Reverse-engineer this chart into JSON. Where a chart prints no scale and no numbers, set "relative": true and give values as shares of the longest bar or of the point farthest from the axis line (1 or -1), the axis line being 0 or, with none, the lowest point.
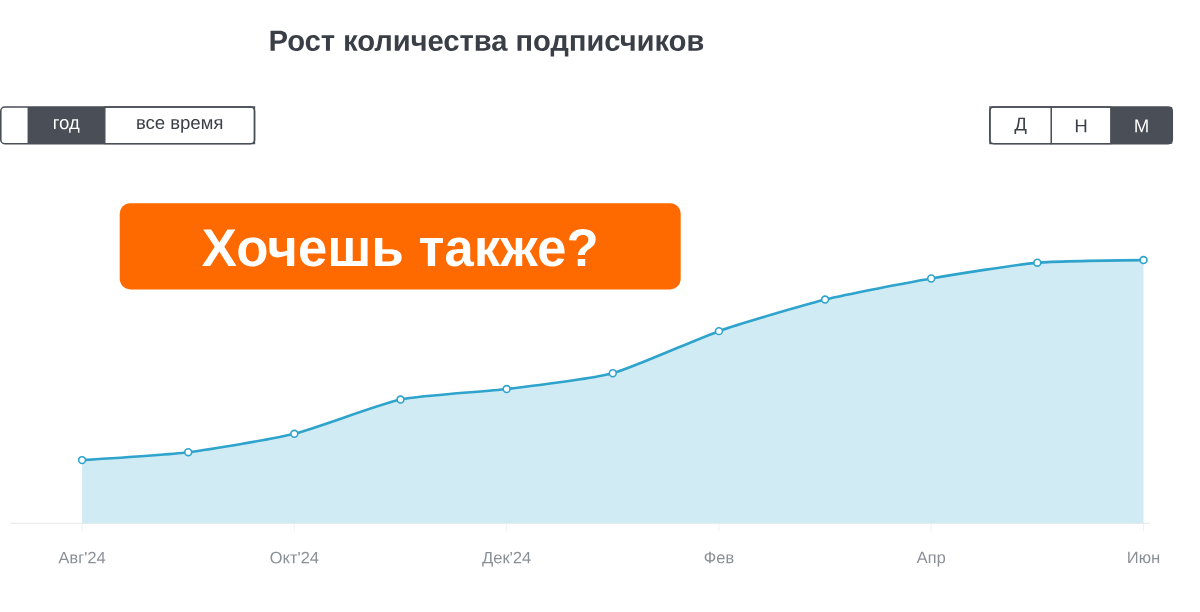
{
  "chart_data": {
    "type": "area",
    "title": "Рост количества подписчиков",
    "categories": [
      "Авг'24",
      null,
      "Окт'24",
      null,
      "Дек'24",
      null,
      "Фев",
      null,
      "Апр",
      null,
      "Июн"
    ],
    "values": [
      0.24,
      0.27,
      0.34,
      0.47,
      0.51,
      0.57,
      0.73,
      0.85,
      0.93,
      0.99,
      1.0
    ],
    "color": "#2ea3cc",
    "relative": true,
    "marker": "circle",
    "annotations": [
      "Хочешь также?",
      "год",
      "все время",
      "Д",
      "Н",
      "М"
    ]
  }
}
